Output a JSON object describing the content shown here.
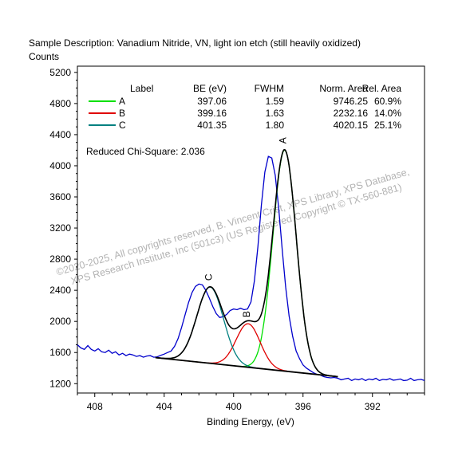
{
  "header": {
    "sample_description": "Sample Description:  Vanadium Nitride, VN, light ion etch (still heavily oxidized)",
    "y_unit": "Counts"
  },
  "chart_data": {
    "type": "line",
    "xlabel": "Binding Energy, (eV)",
    "ylabel": "Counts",
    "xlim": [
      409.0,
      389.0
    ],
    "ylim": [
      1080,
      5280
    ],
    "x_reversed": true,
    "x_ticks": [
      408,
      404,
      400,
      396,
      392
    ],
    "y_ticks": [
      1200,
      1600,
      2000,
      2400,
      2800,
      3200,
      3600,
      4000,
      4400,
      4800,
      5200
    ],
    "grid": false,
    "legend_position": "top",
    "legend_columns": [
      "Label",
      "BE (eV)",
      "FWHM",
      "Norm. Area",
      "Rel. Area"
    ],
    "peaks": [
      {
        "label": "A",
        "be": "397.06",
        "fwhm": "1.59",
        "norm_area": "9746.25",
        "rel_area": "60.9%",
        "color": "#00e000",
        "center": 397.06,
        "width": 1.59,
        "height": 2840
      },
      {
        "label": "B",
        "be": "399.16",
        "fwhm": "1.63",
        "norm_area": "2232.16",
        "rel_area": "14.0%",
        "color": "#e00000",
        "center": 399.16,
        "width": 1.63,
        "height": 560
      },
      {
        "label": "C",
        "be": "401.35",
        "fwhm": "1.80",
        "norm_area": "4020.15",
        "rel_area": "25.1%",
        "color": "#008080",
        "center": 401.35,
        "width": 1.8,
        "height": 980
      }
    ],
    "background": {
      "x": [
        404.5,
        394.0
      ],
      "y": [
        1535,
        1290
      ],
      "color": "#000000"
    },
    "measured": {
      "color": "#0000cc",
      "x": [
        409.0,
        408.8,
        408.6,
        408.4,
        408.2,
        408.0,
        407.8,
        407.6,
        407.4,
        407.2,
        407.0,
        406.8,
        406.6,
        406.4,
        406.2,
        406.0,
        405.8,
        405.6,
        405.4,
        405.2,
        405.0,
        404.8,
        404.6,
        404.4,
        404.2,
        404.0,
        403.8,
        403.6,
        403.4,
        403.2,
        403.0,
        402.8,
        402.6,
        402.4,
        402.2,
        402.0,
        401.8,
        401.6,
        401.4,
        401.2,
        401.0,
        400.8,
        400.6,
        400.4,
        400.2,
        400.0,
        399.8,
        399.6,
        399.4,
        399.2,
        399.0,
        398.8,
        398.6,
        398.4,
        398.2,
        398.0,
        397.8,
        397.6,
        397.4,
        397.2,
        397.0,
        396.8,
        396.6,
        396.4,
        396.2,
        396.0,
        395.8,
        395.6,
        395.4,
        395.2,
        395.0,
        394.8,
        394.6,
        394.4,
        394.2,
        394.0,
        393.8,
        393.6,
        393.4,
        393.2,
        393.0,
        392.8,
        392.6,
        392.4,
        392.2,
        392.0,
        391.8,
        391.6,
        391.4,
        391.2,
        391.0,
        390.8,
        390.6,
        390.4,
        390.2,
        390.0,
        389.8,
        389.6,
        389.4,
        389.2,
        389.0
      ],
      "y": [
        1700,
        1660,
        1640,
        1690,
        1640,
        1620,
        1650,
        1610,
        1600,
        1630,
        1590,
        1610,
        1570,
        1590,
        1560,
        1580,
        1570,
        1550,
        1560,
        1540,
        1555,
        1560,
        1540,
        1545,
        1565,
        1580,
        1600,
        1620,
        1680,
        1780,
        1920,
        2080,
        2240,
        2370,
        2450,
        2480,
        2470,
        2400,
        2300,
        2190,
        2100,
        2050,
        2060,
        2090,
        2140,
        2160,
        2150,
        2170,
        2150,
        2160,
        2250,
        2520,
        2960,
        3500,
        3920,
        4120,
        4100,
        3880,
        3450,
        2920,
        2440,
        2070,
        1810,
        1620,
        1520,
        1440,
        1400,
        1370,
        1340,
        1320,
        1310,
        1290,
        1280,
        1275,
        1280,
        1270,
        1250,
        1260,
        1270,
        1240,
        1260,
        1250,
        1265,
        1240,
        1260,
        1250,
        1270,
        1240,
        1255,
        1250,
        1265,
        1245,
        1250,
        1260,
        1240,
        1245,
        1270,
        1240,
        1250,
        1255,
        1240
      ]
    },
    "reduced_chi_square": "Reduced Chi-Square: 2.036",
    "peak_markers": [
      "A",
      "B",
      "C"
    ],
    "watermark": [
      "©2020-2025,  All copyrights reserved,   B. Vincent Crist,  XPS Library, XPS Database,",
      "XPS Research Institute, Inc (501c3)   (US Registered Copyright © TX-560-881)"
    ]
  }
}
